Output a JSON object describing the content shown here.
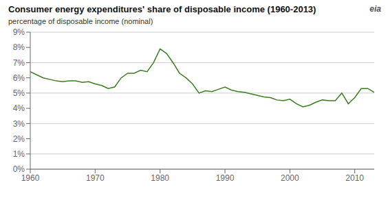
{
  "chart_data": {
    "type": "line",
    "title": "Consumer energy expenditures' share of disposable income (1960-2013)",
    "subtitle": "percentage of disposable income (nominal)",
    "annotations": [
      "eia"
    ],
    "x": [
      1960,
      1961,
      1962,
      1963,
      1964,
      1965,
      1966,
      1967,
      1968,
      1969,
      1970,
      1971,
      1972,
      1973,
      1974,
      1975,
      1976,
      1977,
      1978,
      1979,
      1980,
      1981,
      1982,
      1983,
      1984,
      1985,
      1986,
      1987,
      1988,
      1989,
      1990,
      1991,
      1992,
      1993,
      1994,
      1995,
      1996,
      1997,
      1998,
      1999,
      2000,
      2001,
      2002,
      2003,
      2004,
      2005,
      2006,
      2007,
      2008,
      2009,
      2010,
      2011,
      2012,
      2013
    ],
    "values": [
      6.4,
      6.2,
      6.0,
      5.9,
      5.8,
      5.75,
      5.8,
      5.8,
      5.7,
      5.75,
      5.6,
      5.5,
      5.3,
      5.4,
      6.0,
      6.3,
      6.3,
      6.5,
      6.4,
      7.0,
      7.9,
      7.6,
      7.0,
      6.3,
      6.0,
      5.6,
      5.0,
      5.15,
      5.1,
      5.25,
      5.4,
      5.2,
      5.1,
      5.05,
      4.95,
      4.85,
      4.75,
      4.7,
      4.55,
      4.5,
      4.6,
      4.3,
      4.1,
      4.2,
      4.4,
      4.55,
      4.5,
      4.5,
      5.0,
      4.3,
      4.7,
      5.3,
      5.3,
      5.05
    ],
    "color": "#3a7d1e",
    "xlim": [
      1960,
      2013
    ],
    "xticks": [
      1960,
      1970,
      1980,
      1990,
      2000,
      2010
    ],
    "ylim": [
      0,
      9
    ],
    "yticks": [
      {
        "value": 0,
        "label": "0%"
      },
      {
        "value": 1,
        "label": "1%"
      },
      {
        "value": 2,
        "label": "2%"
      },
      {
        "value": 3,
        "label": "3%"
      },
      {
        "value": 4,
        "label": "4%"
      },
      {
        "value": 5,
        "label": "5%"
      },
      {
        "value": 6,
        "label": "6%"
      },
      {
        "value": 7,
        "label": "7%"
      },
      {
        "value": 8,
        "label": "8%"
      },
      {
        "value": 9,
        "label": "9%"
      }
    ],
    "grid": "y"
  }
}
